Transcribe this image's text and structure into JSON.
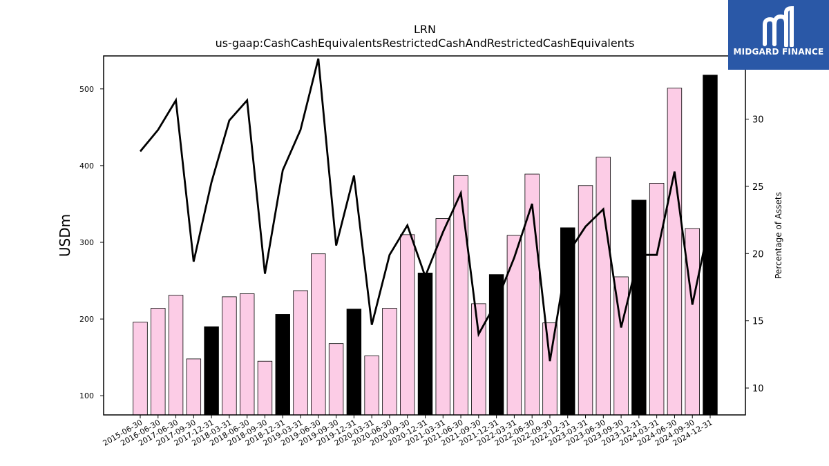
{
  "brand": {
    "name": "MIDGARD FINANCE",
    "bg_color": "#2a58a7",
    "icon": "midgard-m-logo-icon"
  },
  "chart_data": {
    "type": "bar",
    "title": "LRN",
    "subtitle": "us-gaap:CashCashEquivalentsRestrictedCashAndRestrictedCashEquivalents",
    "ylabel": "USDm",
    "y2label": "Percentage of Assets",
    "ylim": [
      75,
      543
    ],
    "y2lim": [
      8,
      34.7
    ],
    "yticks": [
      100,
      200,
      300,
      400,
      500
    ],
    "y2ticks": [
      10,
      15,
      20,
      25,
      30
    ],
    "categories": [
      "2015-06-30",
      "2016-06-30",
      "2017-06-30",
      "2017-09-30",
      "2017-12-31",
      "2018-03-31",
      "2018-06-30",
      "2018-09-30",
      "2018-12-31",
      "2019-03-31",
      "2019-06-30",
      "2019-09-30",
      "2019-12-31",
      "2020-03-31",
      "2020-06-30",
      "2020-09-30",
      "2020-12-31",
      "2021-03-31",
      "2021-06-30",
      "2021-09-30",
      "2021-12-31",
      "2022-03-31",
      "2022-06-30",
      "2022-09-30",
      "2022-12-31",
      "2023-03-31",
      "2023-06-30",
      "2023-09-30",
      "2023-12-31",
      "2024-03-31",
      "2024-06-30",
      "2024-09-30",
      "2024-12-31"
    ],
    "series": [
      {
        "type": "bar",
        "axis": "left",
        "values": [
          196,
          214,
          231,
          148,
          190,
          229,
          233,
          145,
          206,
          237,
          285,
          168,
          213,
          152,
          214,
          310,
          260,
          331,
          387,
          220,
          258,
          309,
          389,
          195,
          319,
          374,
          411,
          255,
          355,
          377,
          501,
          318,
          518
        ]
      },
      {
        "type": "line",
        "axis": "right",
        "values": [
          27.6,
          29.2,
          31.4,
          19.4,
          25.3,
          29.9,
          31.4,
          18.5,
          26.2,
          29.2,
          34.5,
          20.6,
          25.8,
          14.7,
          19.9,
          22.1,
          18.3,
          21.6,
          24.5,
          14.0,
          16.4,
          19.7,
          23.7,
          12.0,
          20.0,
          22.0,
          23.3,
          14.5,
          19.9,
          19.9,
          26.1,
          16.2,
          22.5
        ]
      }
    ],
    "bar_colors": {
      "default": "#fccce6",
      "december": "#000000"
    },
    "line_color": "#000000",
    "grid": false
  }
}
